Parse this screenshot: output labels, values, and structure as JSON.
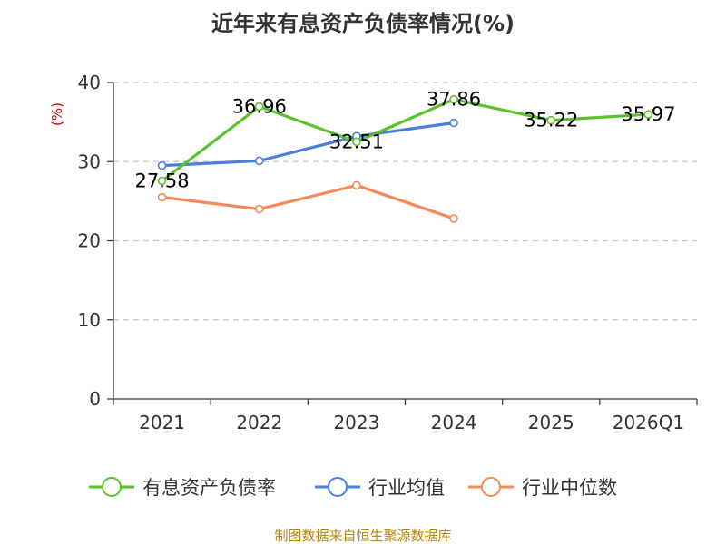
{
  "chart_data": {
    "type": "line",
    "title": "近年来有息资产负债率情况(%)",
    "ylabel": "(%)",
    "xlabel": "",
    "categories": [
      "2021",
      "2022",
      "2023",
      "2024",
      "2025",
      "2026Q1"
    ],
    "ylim": [
      0,
      40
    ],
    "yticks": [
      0,
      10,
      20,
      30,
      40
    ],
    "grid": true,
    "legend_position": "bottom",
    "series": [
      {
        "name": "有息资产负债率",
        "color": "#5bc12c",
        "values": [
          27.58,
          36.96,
          32.51,
          37.86,
          35.22,
          35.97
        ],
        "labels": [
          "27.58",
          "36.96",
          "32.51",
          "37.86",
          "35.22",
          "35.97"
        ]
      },
      {
        "name": "行业均值",
        "color": "#4a7fdc",
        "values": [
          29.5,
          30.1,
          33.2,
          34.9,
          null,
          null
        ]
      },
      {
        "name": "行业中位数",
        "color": "#f5895a",
        "values": [
          25.5,
          24.0,
          27.0,
          22.8,
          null,
          null
        ]
      }
    ],
    "source": "制图数据来自恒生聚源数据库"
  }
}
